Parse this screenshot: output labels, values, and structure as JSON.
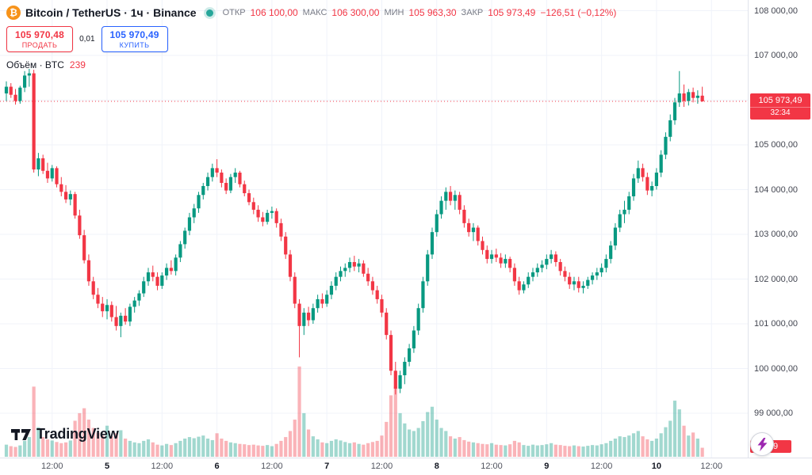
{
  "header": {
    "symbol_title": "Bitcoin / TetherUS · 1ч · Binance",
    "ohlc": {
      "open_label": "ОТКР",
      "open": "106 100,00",
      "high_label": "МАКС",
      "high": "106 300,00",
      "low_label": "МИН",
      "low": "105 963,30",
      "close_label": "ЗАКР",
      "close": "105 973,49",
      "change": "−126,51 (−0,12%)"
    },
    "sell": {
      "price": "105 970,48",
      "label": "ПРОДАТЬ"
    },
    "spread": "0,01",
    "buy": {
      "price": "105 970,49",
      "label": "КУПИТЬ"
    },
    "volume_row": {
      "label": "Объём · BTC",
      "value": "239"
    }
  },
  "price_axis": {
    "last_price_badge": {
      "price": "105 973,49",
      "countdown": "32:34"
    },
    "volume_badge": "239"
  },
  "footer": {
    "logo_text": "TradingView"
  },
  "ui_colors": {
    "up": "#089981",
    "down": "#f23645",
    "buy_blue": "#2962ff",
    "bitcoin_orange": "#f7931a",
    "status_teal": "#26a69a",
    "lightning_purple": "#9c27b0"
  },
  "chart_data": {
    "type": "candlestick",
    "title": "Bitcoin / TetherUS · 1ч · Binance",
    "interval": "1h",
    "last_price": 105973.49,
    "last_volume": 239,
    "price_ticks": [
      {
        "value": 108000,
        "label": "108 000,00"
      },
      {
        "value": 107000,
        "label": "107 000,00"
      },
      {
        "value": 106000,
        "label": "106 000,00"
      },
      {
        "value": 105000,
        "label": "105 000,00"
      },
      {
        "value": 104000,
        "label": "104 000,00"
      },
      {
        "value": 103000,
        "label": "103 000,00"
      },
      {
        "value": 102000,
        "label": "102 000,00"
      },
      {
        "value": 101000,
        "label": "101 000,00"
      },
      {
        "value": 100000,
        "label": "100 000,00"
      },
      {
        "value": 99000,
        "label": "99 000,00"
      }
    ],
    "time_ticks": [
      {
        "index": 10,
        "label": "12:00",
        "major": false
      },
      {
        "index": 22,
        "label": "5",
        "major": true
      },
      {
        "index": 34,
        "label": "12:00",
        "major": false
      },
      {
        "index": 46,
        "label": "6",
        "major": true
      },
      {
        "index": 58,
        "label": "12:00",
        "major": false
      },
      {
        "index": 70,
        "label": "7",
        "major": true
      },
      {
        "index": 82,
        "label": "12:00",
        "major": false
      },
      {
        "index": 94,
        "label": "8",
        "major": true
      },
      {
        "index": 106,
        "label": "12:00",
        "major": false
      },
      {
        "index": 118,
        "label": "9",
        "major": true
      },
      {
        "index": 130,
        "label": "12:00",
        "major": false
      },
      {
        "index": 142,
        "label": "10",
        "major": true
      },
      {
        "index": 154,
        "label": "12:00",
        "major": false
      }
    ],
    "colors": {
      "up": "#089981",
      "down": "#f23645",
      "volume_up": "rgba(8,153,129,0.38)",
      "volume_down": "rgba(242,54,69,0.38)",
      "grid": "#f0f3fa",
      "price_line": "#f23645"
    },
    "candles": [
      [
        106150,
        106420,
        105980,
        106300
      ],
      [
        106300,
        106380,
        106050,
        106120
      ],
      [
        106120,
        106250,
        105900,
        105980
      ],
      [
        105980,
        106320,
        105920,
        106280
      ],
      [
        106280,
        106650,
        106180,
        106550
      ],
      [
        106550,
        106700,
        106300,
        106600
      ],
      [
        106600,
        106680,
        104380,
        104450
      ],
      [
        104450,
        104820,
        104300,
        104700
      ],
      [
        104700,
        104780,
        104350,
        104420
      ],
      [
        104420,
        104600,
        104150,
        104250
      ],
      [
        104250,
        104550,
        104180,
        104480
      ],
      [
        104480,
        104520,
        104050,
        104120
      ],
      [
        104120,
        104280,
        103850,
        103950
      ],
      [
        103950,
        104100,
        103700,
        103780
      ],
      [
        103780,
        103980,
        103650,
        103900
      ],
      [
        103900,
        103950,
        103350,
        103420
      ],
      [
        103420,
        103550,
        102900,
        102980
      ],
      [
        102980,
        103100,
        102350,
        102420
      ],
      [
        102420,
        102550,
        101850,
        101950
      ],
      [
        101950,
        102050,
        101550,
        101650
      ],
      [
        101650,
        101800,
        101350,
        101450
      ],
      [
        101450,
        101600,
        101150,
        101280
      ],
      [
        101280,
        101550,
        101100,
        101420
      ],
      [
        101420,
        101500,
        101050,
        101150
      ],
      [
        101150,
        101400,
        100850,
        100950
      ],
      [
        100950,
        101250,
        100700,
        101180
      ],
      [
        101180,
        101350,
        100980,
        101050
      ],
      [
        101050,
        101450,
        100950,
        101380
      ],
      [
        101380,
        101600,
        101250,
        101520
      ],
      [
        101520,
        101750,
        101400,
        101680
      ],
      [
        101680,
        102050,
        101600,
        101950
      ],
      [
        101950,
        102250,
        101850,
        102150
      ],
      [
        102150,
        102300,
        101950,
        102050
      ],
      [
        102050,
        102150,
        101750,
        101850
      ],
      [
        101850,
        102150,
        101780,
        102080
      ],
      [
        102080,
        102350,
        101980,
        102250
      ],
      [
        102250,
        102420,
        102100,
        102180
      ],
      [
        102180,
        102550,
        102080,
        102480
      ],
      [
        102480,
        102850,
        102380,
        102780
      ],
      [
        102780,
        103150,
        102680,
        103080
      ],
      [
        103080,
        103480,
        102980,
        103380
      ],
      [
        103380,
        103680,
        103250,
        103580
      ],
      [
        103580,
        103950,
        103480,
        103880
      ],
      [
        103880,
        104150,
        103780,
        104080
      ],
      [
        104080,
        104380,
        103980,
        104280
      ],
      [
        104280,
        104580,
        104180,
        104480
      ],
      [
        104480,
        104680,
        104280,
        104380
      ],
      [
        104380,
        104450,
        104050,
        104150
      ],
      [
        104150,
        104250,
        103900,
        103980
      ],
      [
        103980,
        104350,
        103920,
        104280
      ],
      [
        104280,
        104480,
        104150,
        104380
      ],
      [
        104380,
        104420,
        104050,
        104120
      ],
      [
        104120,
        104200,
        103850,
        103920
      ],
      [
        103920,
        104000,
        103650,
        103720
      ],
      [
        103720,
        103820,
        103450,
        103550
      ],
      [
        103550,
        103650,
        103280,
        103380
      ],
      [
        103380,
        103500,
        103180,
        103280
      ],
      [
        103280,
        103550,
        103220,
        103480
      ],
      [
        103480,
        103620,
        103350,
        103520
      ],
      [
        103520,
        103580,
        103150,
        103250
      ],
      [
        103250,
        103350,
        102850,
        102950
      ],
      [
        102950,
        103050,
        102450,
        102550
      ],
      [
        102550,
        102650,
        101950,
        102050
      ],
      [
        102050,
        102150,
        101350,
        101450
      ],
      [
        101450,
        101550,
        100250,
        100950
      ],
      [
        100950,
        101350,
        100750,
        101250
      ],
      [
        101250,
        101380,
        100950,
        101080
      ],
      [
        101080,
        101450,
        101000,
        101350
      ],
      [
        101350,
        101650,
        101250,
        101550
      ],
      [
        101550,
        101680,
        101350,
        101450
      ],
      [
        101450,
        101750,
        101380,
        101650
      ],
      [
        101650,
        101950,
        101550,
        101850
      ],
      [
        101850,
        102150,
        101750,
        102050
      ],
      [
        102050,
        102280,
        101950,
        102180
      ],
      [
        102180,
        102350,
        102050,
        102250
      ],
      [
        102250,
        102480,
        102150,
        102380
      ],
      [
        102380,
        102520,
        102180,
        102280
      ],
      [
        102280,
        102450,
        102150,
        102350
      ],
      [
        102350,
        102420,
        102050,
        102120
      ],
      [
        102120,
        102250,
        101850,
        101950
      ],
      [
        101950,
        102050,
        101650,
        101750
      ],
      [
        101750,
        101850,
        101450,
        101550
      ],
      [
        101550,
        101650,
        101150,
        101250
      ],
      [
        101250,
        101350,
        100650,
        100750
      ],
      [
        100750,
        100850,
        99850,
        99950
      ],
      [
        99950,
        100150,
        99420,
        99550
      ],
      [
        99550,
        99950,
        99450,
        99850
      ],
      [
        99850,
        100250,
        99650,
        100150
      ],
      [
        100150,
        100550,
        100050,
        100450
      ],
      [
        100450,
        100950,
        100350,
        100850
      ],
      [
        100850,
        101450,
        100750,
        101350
      ],
      [
        101350,
        102050,
        101250,
        101950
      ],
      [
        101950,
        102650,
        101850,
        102550
      ],
      [
        102550,
        103150,
        102450,
        103050
      ],
      [
        103050,
        103550,
        102950,
        103450
      ],
      [
        103450,
        103850,
        103350,
        103750
      ],
      [
        103750,
        104050,
        103550,
        103950
      ],
      [
        103950,
        104080,
        103650,
        103750
      ],
      [
        103750,
        103980,
        103550,
        103880
      ],
      [
        103880,
        103950,
        103450,
        103550
      ],
      [
        103550,
        103650,
        103150,
        103250
      ],
      [
        103250,
        103350,
        102950,
        103050
      ],
      [
        103050,
        103250,
        102850,
        103150
      ],
      [
        103150,
        103200,
        102750,
        102850
      ],
      [
        102850,
        102950,
        102550,
        102650
      ],
      [
        102650,
        102750,
        102350,
        102450
      ],
      [
        102450,
        102650,
        102350,
        102550
      ],
      [
        102550,
        102680,
        102380,
        102480
      ],
      [
        102480,
        102580,
        102250,
        102350
      ],
      [
        102350,
        102550,
        102250,
        102450
      ],
      [
        102450,
        102500,
        102150,
        102250
      ],
      [
        102250,
        102350,
        101850,
        101950
      ],
      [
        101950,
        102050,
        101650,
        101750
      ],
      [
        101750,
        101950,
        101680,
        101880
      ],
      [
        101880,
        102150,
        101800,
        102050
      ],
      [
        102050,
        102250,
        101950,
        102150
      ],
      [
        102150,
        102350,
        102050,
        102250
      ],
      [
        102250,
        102420,
        102150,
        102320
      ],
      [
        102320,
        102550,
        102220,
        102450
      ],
      [
        102450,
        102650,
        102350,
        102550
      ],
      [
        102550,
        102620,
        102280,
        102380
      ],
      [
        102380,
        102450,
        102080,
        102180
      ],
      [
        102180,
        102280,
        101950,
        102050
      ],
      [
        102050,
        102150,
        101780,
        101880
      ],
      [
        101880,
        102050,
        101750,
        101950
      ],
      [
        101950,
        102050,
        101700,
        101800
      ],
      [
        101800,
        101950,
        101680,
        101850
      ],
      [
        101850,
        102050,
        101780,
        101980
      ],
      [
        101980,
        102150,
        101880,
        102080
      ],
      [
        102080,
        102250,
        101980,
        102150
      ],
      [
        102150,
        102350,
        102050,
        102250
      ],
      [
        102250,
        102550,
        102150,
        102450
      ],
      [
        102450,
        102850,
        102350,
        102750
      ],
      [
        102750,
        103250,
        102650,
        103150
      ],
      [
        103150,
        103550,
        103050,
        103450
      ],
      [
        103450,
        103750,
        103250,
        103550
      ],
      [
        103550,
        103950,
        103450,
        103850
      ],
      [
        103850,
        104350,
        103750,
        104250
      ],
      [
        104250,
        104650,
        104150,
        104480
      ],
      [
        104480,
        104580,
        104180,
        104280
      ],
      [
        104280,
        104380,
        103880,
        103980
      ],
      [
        103980,
        104180,
        103850,
        104080
      ],
      [
        104080,
        104480,
        104000,
        104380
      ],
      [
        104380,
        104880,
        104280,
        104780
      ],
      [
        104780,
        105280,
        104680,
        105180
      ],
      [
        105180,
        105680,
        105080,
        105550
      ],
      [
        105550,
        106050,
        105450,
        105950
      ],
      [
        105950,
        106650,
        105850,
        106150
      ],
      [
        106150,
        106350,
        105850,
        105980
      ],
      [
        105980,
        106250,
        105880,
        106180
      ],
      [
        106180,
        106280,
        105950,
        106050
      ],
      [
        106050,
        106220,
        105920,
        106100
      ],
      [
        106100,
        106300,
        105963.3,
        105973.49
      ]
    ],
    "volumes": [
      320,
      280,
      260,
      300,
      420,
      520,
      1850,
      780,
      520,
      460,
      430,
      390,
      360,
      380,
      430,
      950,
      1150,
      1280,
      980,
      760,
      640,
      560,
      820,
      540,
      620,
      700,
      480,
      420,
      380,
      360,
      420,
      460,
      380,
      320,
      300,
      340,
      310,
      360,
      420,
      480,
      520,
      490,
      530,
      560,
      480,
      440,
      620,
      480,
      420,
      380,
      360,
      340,
      330,
      310,
      320,
      300,
      290,
      310,
      280,
      340,
      420,
      520,
      680,
      980,
      2380,
      1150,
      720,
      540,
      460,
      380,
      360,
      420,
      460,
      430,
      390,
      360,
      380,
      340,
      320,
      360,
      390,
      420,
      560,
      920,
      1620,
      1850,
      1150,
      880,
      720,
      680,
      760,
      940,
      1180,
      1320,
      980,
      760,
      680,
      540,
      480,
      520,
      440,
      400,
      380,
      360,
      340,
      330,
      360,
      320,
      310,
      300,
      330,
      420,
      380,
      310,
      290,
      320,
      300,
      310,
      330,
      360,
      320,
      310,
      290,
      280,
      300,
      280,
      270,
      290,
      310,
      300,
      330,
      360,
      420,
      480,
      540,
      520,
      560,
      620,
      680,
      540,
      460,
      420,
      480,
      620,
      780,
      950,
      1480,
      1250,
      820,
      560,
      640,
      480,
      239
    ]
  }
}
